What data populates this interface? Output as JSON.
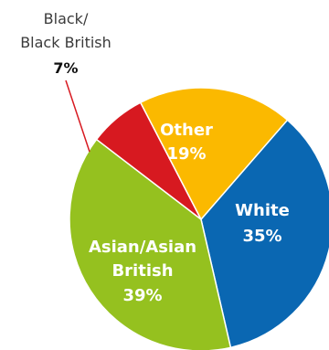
{
  "chart_data": {
    "type": "pie",
    "title": "",
    "slices": [
      {
        "label": "White",
        "value": 35,
        "value_label": "35%",
        "color": "#0A67B2",
        "label_color": "#ffffff"
      },
      {
        "label": "Asian/Asian British",
        "label_lines": [
          "Asian/Asian",
          "British"
        ],
        "value": 39,
        "value_label": "39%",
        "color": "#95C11F",
        "label_color": "#ffffff"
      },
      {
        "label": "Black/ Black British",
        "label_lines": [
          "Black/",
          "Black British"
        ],
        "value": 7,
        "value_label": "7%",
        "color": "#D71920",
        "label_color": "#3a3a3a",
        "external": true
      },
      {
        "label": "Other",
        "value": 19,
        "value_label": "19%",
        "color": "#FBB900",
        "label_color": "#ffffff"
      }
    ],
    "start_angle_deg": 41,
    "direction": "clockwise",
    "legend": "none"
  }
}
